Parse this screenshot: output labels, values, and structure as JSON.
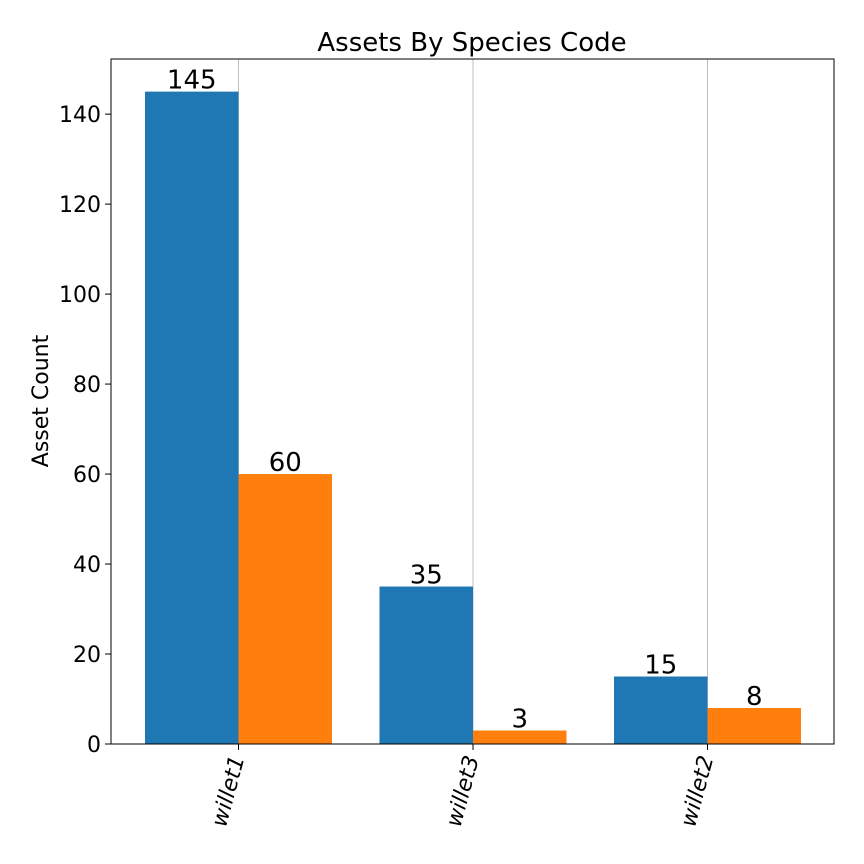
{
  "chart_data": {
    "type": "bar",
    "title": "Assets By Species Code",
    "xlabel": "",
    "ylabel": "Asset Count",
    "categories": [
      "willet1",
      "willet3",
      "willet2"
    ],
    "series": [
      {
        "values": [
          145,
          35,
          15
        ],
        "color": "#1f77b4"
      },
      {
        "values": [
          60,
          3,
          8
        ],
        "color": "#ff7f0e"
      }
    ],
    "ylim": [
      0,
      152.25
    ],
    "yticks": [
      0,
      20,
      40,
      60,
      80,
      100,
      120,
      140
    ],
    "grid": "vertical",
    "legend": "none"
  }
}
